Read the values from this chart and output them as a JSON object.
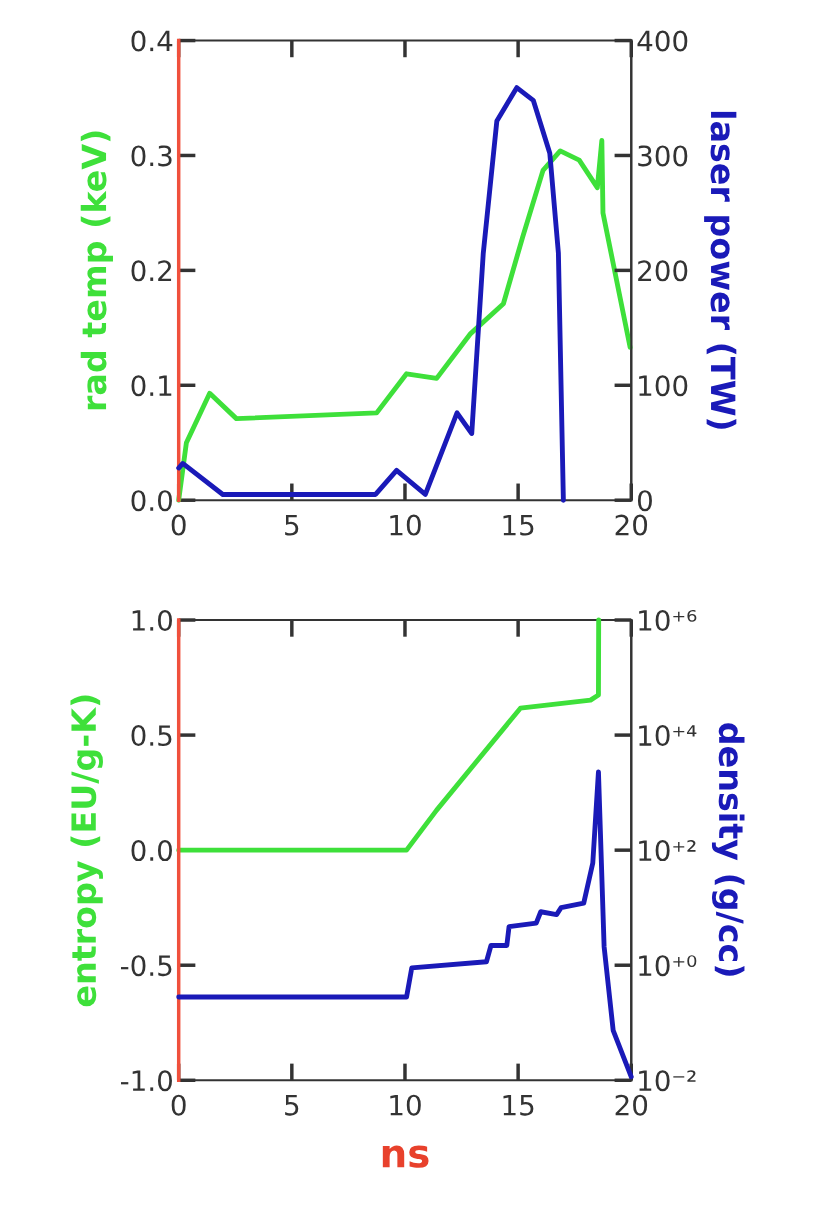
{
  "chart_data": [
    {
      "type": "line",
      "ylabel": "rad temp (keV)",
      "y2label": "laser power (TW)",
      "xlim": [
        0,
        20
      ],
      "xticks": [
        0,
        5,
        10,
        15,
        20
      ],
      "ylim": [
        0,
        0.4
      ],
      "yticks": [
        {
          "value": 0,
          "label": "0.0"
        },
        {
          "value": 0.1,
          "label": "0.1"
        },
        {
          "value": 0.2,
          "label": "0.2"
        },
        {
          "value": 0.3,
          "label": "0.3"
        },
        {
          "value": 0.4,
          "label": "0.4"
        }
      ],
      "y2lim": [
        0,
        400
      ],
      "y2ticks": [
        0,
        100,
        200,
        300,
        400
      ],
      "grid": false,
      "marker": "none",
      "line_style": "solid",
      "series": [
        {
          "color": "#3ee03a",
          "x": [
            0,
            0.34,
            1.37,
            2.55,
            8.75,
            10.07,
            11.4,
            12.9,
            14.35,
            15.2,
            16.1,
            16.86,
            17.7,
            18.5,
            18.7,
            18.75,
            19.95
          ],
          "values": [
            0.0,
            0.05,
            0.093,
            0.071,
            0.076,
            0.11,
            0.106,
            0.145,
            0.171,
            0.229,
            0.287,
            0.304,
            0.296,
            0.272,
            0.313,
            0.25,
            0.133
          ]
        },
        {
          "color": "#1a1ab8",
          "axis": "y2",
          "x": [
            0,
            0.18,
            1.95,
            8.7,
            9.63,
            10.9,
            12.3,
            12.95,
            13.46,
            14.06,
            14.94,
            15.67,
            16.4,
            16.78,
            17.0
          ],
          "values": [
            28,
            32,
            5,
            5,
            26,
            5,
            76,
            58,
            215,
            330,
            359,
            348,
            302,
            215,
            0
          ]
        }
      ]
    },
    {
      "type": "line",
      "xlabel": "ns",
      "ylabel": "entropy (EU/g-K)",
      "y2label": "density (g/cc)",
      "xlim": [
        0,
        20
      ],
      "xticks": [
        0,
        5,
        10,
        15,
        20
      ],
      "ylim": [
        -1,
        1
      ],
      "yticks": [
        {
          "value": -1,
          "label": "-1.0"
        },
        {
          "value": -0.5,
          "label": "-0.5"
        },
        {
          "value": 0,
          "label": "0.0"
        },
        {
          "value": 0.5,
          "label": "0.5"
        },
        {
          "value": 1,
          "label": "1.0"
        }
      ],
      "log": "y2",
      "y2lim": [
        0.01,
        1000000
      ],
      "y2ticks": [
        {
          "value": 0.01,
          "label": "10⁻²"
        },
        {
          "value": 1,
          "label": "10⁺⁰"
        },
        {
          "value": 100,
          "label": "10⁺²"
        },
        {
          "value": 10000,
          "label": "10⁺⁴"
        },
        {
          "value": 1000000,
          "label": "10⁺⁶"
        }
      ],
      "grid": false,
      "marker": "none",
      "line_style": "solid",
      "series": [
        {
          "color": "#3ee03a",
          "x": [
            0,
            10.07,
            11.4,
            15.1,
            18.2,
            18.55,
            18.56
          ],
          "values": [
            0.0,
            0.0,
            0.174,
            0.617,
            0.652,
            0.674,
            1.0
          ]
        },
        {
          "color": "#1a1ab8",
          "axis": "y2",
          "x": [
            0,
            10.07,
            10.3,
            13.6,
            13.8,
            14.5,
            14.6,
            15.8,
            16.0,
            16.7,
            16.9,
            17.9,
            18.3,
            18.55,
            18.8,
            19.2,
            20.0
          ],
          "values": [
            0.28,
            0.28,
            0.9,
            1.15,
            2.2,
            2.2,
            4.7,
            5.4,
            8.5,
            7.6,
            10,
            12,
            60,
            2300,
            2.1,
            0.074,
            0.0115
          ]
        }
      ]
    }
  ]
}
